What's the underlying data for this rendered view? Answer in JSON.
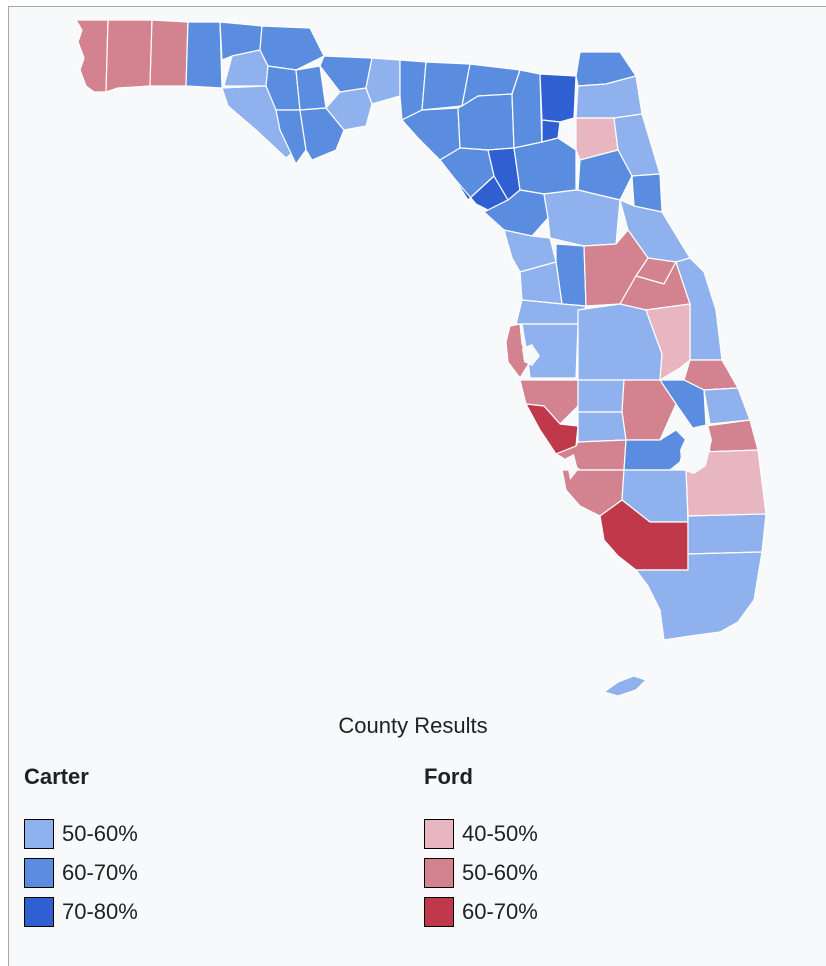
{
  "caption": "County Results",
  "colors": {
    "carter_50_60": "#8fb1ee",
    "carter_60_70": "#5a8de0",
    "carter_70_80": "#2f5fd0",
    "ford_40_50": "#e8b6c0",
    "ford_50_60": "#d3828f",
    "ford_60_70": "#c0394b",
    "border": "#ffffff"
  },
  "legend": {
    "carter": {
      "title": "Carter",
      "items": [
        {
          "label": "50-60%",
          "color": "#8fb1ee"
        },
        {
          "label": "60-70%",
          "color": "#5a8de0"
        },
        {
          "label": "70-80%",
          "color": "#2f5fd0"
        }
      ]
    },
    "ford": {
      "title": "Ford",
      "items": [
        {
          "label": "40-50%",
          "color": "#e8b6c0"
        },
        {
          "label": "50-60%",
          "color": "#d3828f"
        },
        {
          "label": "60-70%",
          "color": "#c0394b"
        }
      ]
    }
  }
}
